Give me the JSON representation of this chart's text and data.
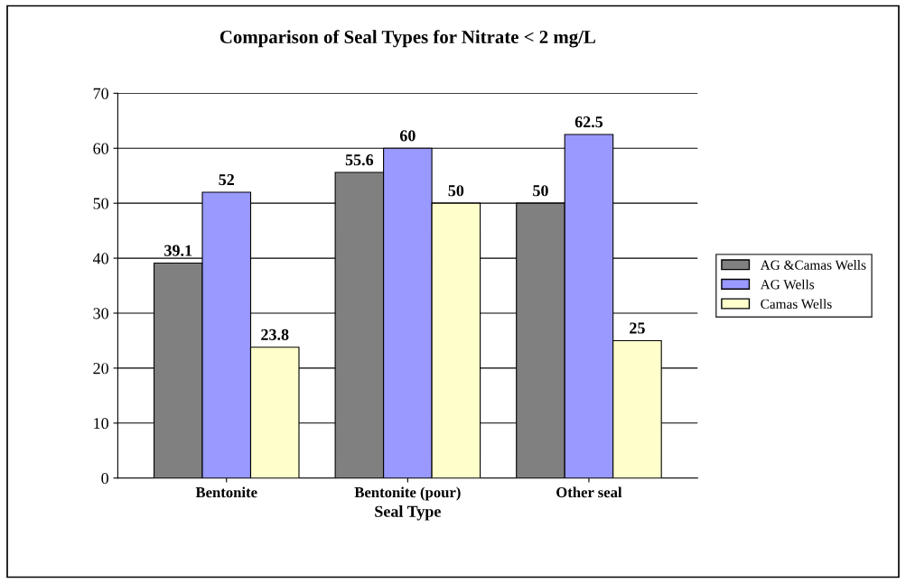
{
  "chart_data": {
    "type": "bar",
    "title": "Comparison of Seal Types for Nitrate < 2 mg/L",
    "xlabel": "Seal Type",
    "categories": [
      "Bentonite",
      "Bentonite (pour)",
      "Other seal"
    ],
    "series": [
      {
        "name": "AG &Camas Wells",
        "color": "#808080",
        "values": [
          39.1,
          55.6,
          50
        ]
      },
      {
        "name": "AG Wells",
        "color": "#9999ff",
        "values": [
          52,
          60,
          62.5
        ]
      },
      {
        "name": "Camas Wells",
        "color": "#ffffcc",
        "values": [
          23.8,
          50,
          25
        ]
      }
    ],
    "ylim": [
      0,
      70
    ],
    "yticks": [
      0,
      10,
      20,
      30,
      40,
      50,
      60,
      70
    ],
    "grid": "y",
    "legend": "right",
    "data_labels": true
  }
}
